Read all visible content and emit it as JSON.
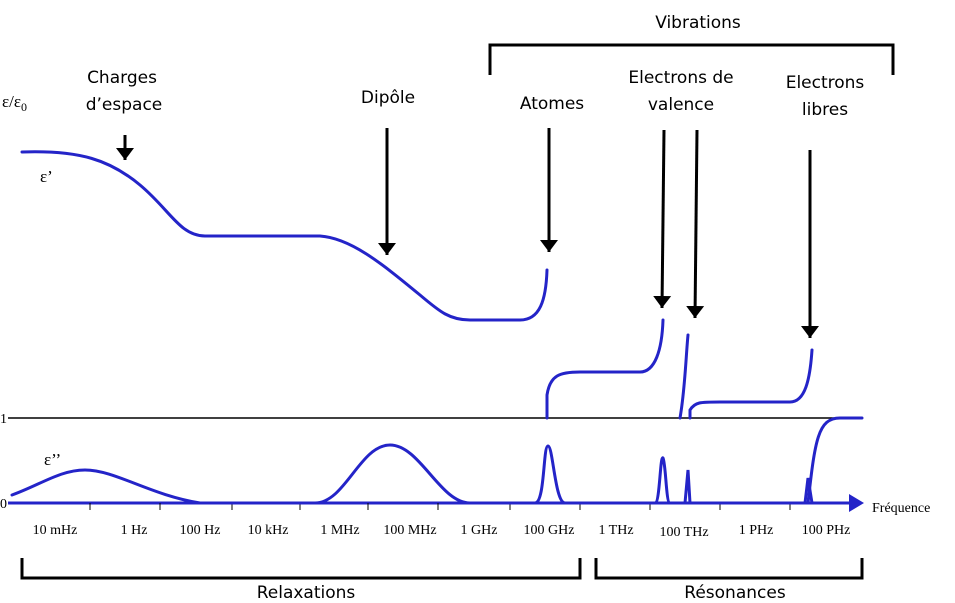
{
  "axis": {
    "ylabel": {
      "main": "ε/ε",
      "sub": "0"
    },
    "ytick_one": "1",
    "ytick_zero": "0",
    "xlabel": "Fréquence",
    "xticks": [
      "10 mHz",
      "1 Hz",
      "100 Hz",
      "10 kHz",
      "1 MHz",
      "100 MHz",
      "1 GHz",
      "100 GHz",
      "1 THz",
      "100 THz",
      "1 PHz",
      "100 PHz"
    ]
  },
  "curves": {
    "real": "ε’",
    "imaginary": "ε’’"
  },
  "mechanisms": [
    {
      "lines": [
        "Charges",
        "d’espace"
      ]
    },
    {
      "lines": [
        "Dipôle"
      ]
    },
    {
      "lines": [
        "Atomes"
      ]
    },
    {
      "lines": [
        "Electrons de",
        "valence"
      ]
    },
    {
      "lines": [
        "Electrons",
        "libres"
      ]
    }
  ],
  "groups": {
    "vibrations": "Vibrations",
    "relaxations": "Relaxations",
    "resonances": "Résonances"
  }
}
